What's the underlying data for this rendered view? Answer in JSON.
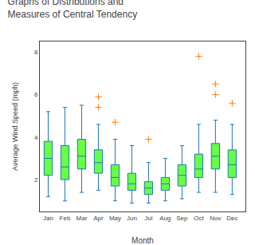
{
  "chart_data": {
    "type": "box",
    "title": "Graphs of Distributions and\nMeasures of Central Tendency",
    "xlabel": "Month",
    "ylabel": "Average Wind Speed (mph)",
    "categories": [
      "Jan",
      "Feb",
      "Mar",
      "Apr",
      "May",
      "Jun",
      "Jul",
      "Aug",
      "Sep",
      "Oct",
      "Nov",
      "Dec"
    ],
    "q1": [
      2.2,
      2.0,
      2.5,
      2.3,
      1.7,
      1.5,
      1.3,
      1.5,
      1.7,
      2.1,
      2.5,
      2.1
    ],
    "median": [
      3.0,
      2.6,
      3.1,
      2.8,
      2.1,
      1.8,
      1.6,
      1.8,
      2.2,
      2.5,
      3.1,
      2.7
    ],
    "q3": [
      3.8,
      3.6,
      3.9,
      3.4,
      2.7,
      2.3,
      1.9,
      2.1,
      2.7,
      3.2,
      3.7,
      3.4
    ],
    "whislo": [
      1.2,
      1.0,
      1.4,
      1.5,
      1.0,
      0.9,
      0.9,
      1.0,
      1.1,
      1.4,
      1.4,
      1.3
    ],
    "whishi": [
      5.2,
      5.4,
      5.5,
      4.6,
      3.9,
      3.6,
      2.8,
      3.0,
      3.6,
      4.6,
      4.8,
      4.6
    ],
    "fliers": [
      [],
      [],
      [],
      [
        5.4,
        5.9
      ],
      [
        4.7
      ],
      [],
      [
        3.9
      ],
      [],
      [],
      [
        7.8
      ],
      [
        6.0,
        6.5
      ],
      [
        5.6
      ]
    ],
    "color": "#66ff44",
    "marker": "cross",
    "ylim": [
      0.5,
      8.5
    ],
    "yticks": [
      2,
      4,
      6,
      8
    ],
    "grid": false
  }
}
